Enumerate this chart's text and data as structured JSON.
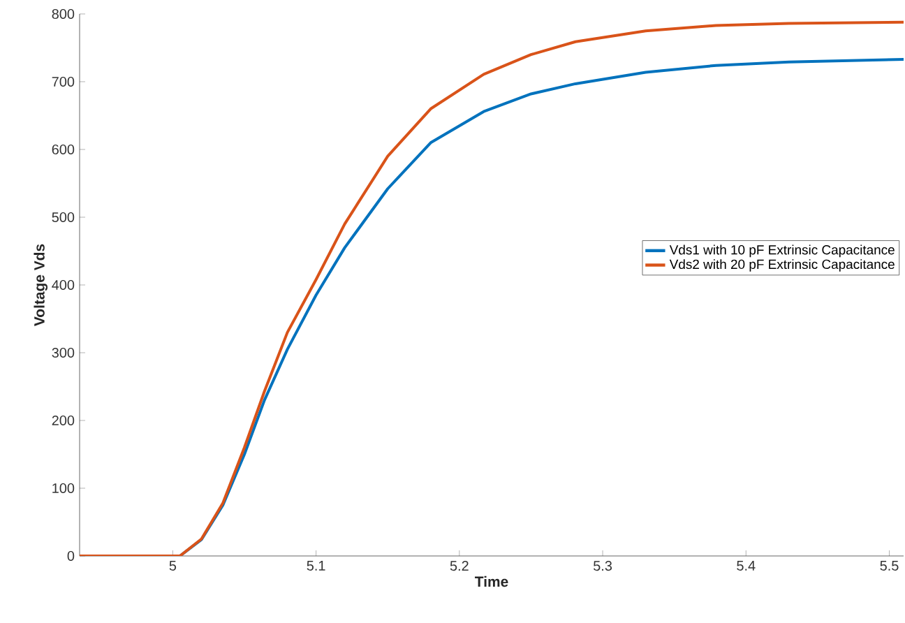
{
  "chart_data": {
    "type": "line",
    "xlabel": "Time",
    "ylabel": "Voltage Vds",
    "xlim": [
      4.935,
      5.51
    ],
    "ylim": [
      0,
      800
    ],
    "xticks": [
      5,
      5.1,
      5.2,
      5.3,
      5.4,
      5.5
    ],
    "yticks": [
      0,
      100,
      200,
      300,
      400,
      500,
      600,
      700,
      800
    ],
    "x": [
      4.935,
      5.0,
      5.005,
      5.02,
      5.035,
      5.05,
      5.064,
      5.08,
      5.1,
      5.12,
      5.15,
      5.18,
      5.217,
      5.25,
      5.281,
      5.33,
      5.379,
      5.43,
      5.51
    ],
    "series": [
      {
        "name": "Vds1 with 10 pF Extrinsic Capacitance",
        "color": "#0072bd",
        "values": [
          0,
          0,
          0,
          24,
          75,
          150,
          230,
          305,
          385,
          455,
          542,
          610,
          656,
          682,
          697,
          714,
          724,
          729,
          733
        ]
      },
      {
        "name": "Vds2 with 20 pF Extrinsic Capacitance",
        "color": "#d95319",
        "values": [
          0,
          0,
          0,
          25,
          78,
          160,
          243,
          330,
          408,
          490,
          590,
          660,
          711,
          740,
          759,
          775,
          783,
          786,
          788
        ]
      }
    ],
    "legend": "right",
    "grid": false,
    "marker": "none",
    "line_style": "solid"
  }
}
